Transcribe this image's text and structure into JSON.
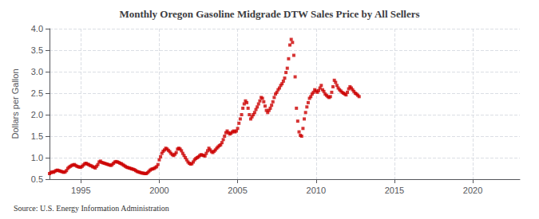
{
  "chart_data": {
    "type": "scatter",
    "title": "Monthly Oregon Gasoline Midgrade DTW Sales Price by All Sellers",
    "ylabel": "Dollars per Gallon",
    "source": "Source: U.S. Energy Information Administration",
    "color": "#cc0000",
    "marker": "square",
    "grid": true,
    "xlim": [
      1993.0,
      2023.0
    ],
    "ylim": [
      0.5,
      4.0
    ],
    "xticks": [
      1995,
      2000,
      2005,
      2010,
      2015,
      2020
    ],
    "yticks": [
      0.5,
      {
        "value": 1.0,
        "label": "1.0"
      },
      1.5,
      {
        "value": 2.0,
        "label": "2.0"
      },
      2.5,
      {
        "value": 3.0,
        "label": "3.0"
      },
      3.5,
      {
        "value": 4.0,
        "label": "4.0"
      }
    ],
    "x": [
      1993.0,
      1993.083,
      1993.167,
      1993.25,
      1993.333,
      1993.417,
      1993.5,
      1993.583,
      1993.667,
      1993.75,
      1993.833,
      1993.917,
      1994.0,
      1994.083,
      1994.167,
      1994.25,
      1994.333,
      1994.417,
      1994.5,
      1994.583,
      1994.667,
      1994.75,
      1994.833,
      1994.917,
      1995.0,
      1995.083,
      1995.167,
      1995.25,
      1995.333,
      1995.417,
      1995.5,
      1995.583,
      1995.667,
      1995.75,
      1995.833,
      1995.917,
      1996.0,
      1996.083,
      1996.167,
      1996.25,
      1996.333,
      1996.417,
      1996.5,
      1996.583,
      1996.667,
      1996.75,
      1996.833,
      1996.917,
      1997.0,
      1997.083,
      1997.167,
      1997.25,
      1997.333,
      1997.417,
      1997.5,
      1997.583,
      1997.667,
      1997.75,
      1997.833,
      1997.917,
      1998.0,
      1998.083,
      1998.167,
      1998.25,
      1998.333,
      1998.417,
      1998.5,
      1998.583,
      1998.667,
      1998.75,
      1998.833,
      1998.917,
      1999.0,
      1999.083,
      1999.167,
      1999.25,
      1999.333,
      1999.417,
      1999.5,
      1999.583,
      1999.667,
      1999.75,
      1999.833,
      1999.917,
      2000.0,
      2000.083,
      2000.167,
      2000.25,
      2000.333,
      2000.417,
      2000.5,
      2000.583,
      2000.667,
      2000.75,
      2000.833,
      2000.917,
      2001.0,
      2001.083,
      2001.167,
      2001.25,
      2001.333,
      2001.417,
      2001.5,
      2001.583,
      2001.667,
      2001.75,
      2001.833,
      2001.917,
      2002.0,
      2002.083,
      2002.167,
      2002.25,
      2002.333,
      2002.417,
      2002.5,
      2002.583,
      2002.667,
      2002.75,
      2002.833,
      2002.917,
      2003.0,
      2003.083,
      2003.167,
      2003.25,
      2003.333,
      2003.417,
      2003.5,
      2003.583,
      2003.667,
      2003.75,
      2003.833,
      2003.917,
      2004.0,
      2004.083,
      2004.167,
      2004.25,
      2004.333,
      2004.417,
      2004.5,
      2004.583,
      2004.667,
      2004.75,
      2004.833,
      2004.917,
      2005.0,
      2005.083,
      2005.167,
      2005.25,
      2005.333,
      2005.417,
      2005.5,
      2005.583,
      2005.667,
      2005.75,
      2005.833,
      2005.917,
      2006.0,
      2006.083,
      2006.167,
      2006.25,
      2006.333,
      2006.417,
      2006.5,
      2006.583,
      2006.667,
      2006.75,
      2006.833,
      2006.917,
      2007.0,
      2007.083,
      2007.167,
      2007.25,
      2007.333,
      2007.417,
      2007.5,
      2007.583,
      2007.667,
      2007.75,
      2007.833,
      2007.917,
      2008.0,
      2008.083,
      2008.167,
      2008.25,
      2008.333,
      2008.417,
      2008.5,
      2008.583,
      2008.667,
      2008.75,
      2008.833,
      2008.917,
      2009.0,
      2009.083,
      2009.167,
      2009.25,
      2009.333,
      2009.417,
      2009.5,
      2009.583,
      2009.667,
      2009.75,
      2009.833,
      2009.917,
      2010.0,
      2010.083,
      2010.167,
      2010.25,
      2010.333,
      2010.417,
      2010.5,
      2010.583,
      2010.667,
      2010.75,
      2010.833,
      2010.917,
      2011.0,
      2011.083,
      2011.167,
      2011.25,
      2011.333,
      2011.417,
      2011.5,
      2011.583,
      2011.667,
      2011.75,
      2011.833,
      2011.917,
      2012.0,
      2012.083,
      2012.167,
      2012.25,
      2012.333,
      2012.417,
      2012.5,
      2012.583,
      2012.667,
      2012.75
    ],
    "values": [
      0.63,
      0.65,
      0.67,
      0.66,
      0.68,
      0.7,
      0.71,
      0.7,
      0.69,
      0.68,
      0.67,
      0.66,
      0.67,
      0.7,
      0.75,
      0.78,
      0.8,
      0.82,
      0.83,
      0.84,
      0.82,
      0.8,
      0.79,
      0.78,
      0.78,
      0.8,
      0.83,
      0.86,
      0.87,
      0.85,
      0.84,
      0.82,
      0.81,
      0.79,
      0.78,
      0.76,
      0.8,
      0.84,
      0.9,
      0.92,
      0.89,
      0.88,
      0.87,
      0.86,
      0.85,
      0.84,
      0.83,
      0.82,
      0.84,
      0.87,
      0.9,
      0.91,
      0.9,
      0.89,
      0.87,
      0.86,
      0.84,
      0.82,
      0.8,
      0.78,
      0.77,
      0.76,
      0.75,
      0.74,
      0.73,
      0.72,
      0.7,
      0.68,
      0.67,
      0.66,
      0.65,
      0.64,
      0.64,
      0.63,
      0.63,
      0.65,
      0.68,
      0.71,
      0.73,
      0.74,
      0.75,
      0.77,
      0.79,
      0.84,
      0.95,
      1.02,
      1.1,
      1.15,
      1.18,
      1.22,
      1.2,
      1.17,
      1.14,
      1.1,
      1.07,
      1.05,
      1.08,
      1.12,
      1.2,
      1.22,
      1.2,
      1.16,
      1.1,
      1.05,
      1.0,
      0.95,
      0.9,
      0.87,
      0.85,
      0.86,
      0.9,
      0.95,
      0.98,
      1.0,
      1.02,
      1.05,
      1.07,
      1.06,
      1.05,
      1.04,
      1.1,
      1.16,
      1.22,
      1.18,
      1.14,
      1.12,
      1.15,
      1.18,
      1.22,
      1.25,
      1.28,
      1.3,
      1.35,
      1.42,
      1.5,
      1.58,
      1.62,
      1.58,
      1.55,
      1.57,
      1.6,
      1.62,
      1.6,
      1.62,
      1.68,
      1.8,
      1.9,
      2.0,
      2.15,
      2.25,
      2.32,
      2.28,
      2.15,
      2.0,
      1.9,
      1.95,
      2.0,
      2.05,
      2.12,
      2.18,
      2.25,
      2.32,
      2.4,
      2.38,
      2.3,
      2.2,
      2.1,
      2.05,
      2.1,
      2.15,
      2.22,
      2.3,
      2.4,
      2.48,
      2.52,
      2.58,
      2.62,
      2.68,
      2.72,
      2.78,
      2.85,
      2.98,
      3.08,
      3.3,
      3.62,
      3.75,
      3.68,
      3.38,
      2.88,
      2.15,
      1.85,
      1.6,
      1.52,
      1.5,
      1.68,
      1.9,
      2.05,
      2.18,
      2.28,
      2.38,
      2.42,
      2.48,
      2.52,
      2.58,
      2.55,
      2.52,
      2.56,
      2.62,
      2.68,
      2.58,
      2.54,
      2.48,
      2.45,
      2.42,
      2.4,
      2.42,
      2.52,
      2.65,
      2.8,
      2.75,
      2.68,
      2.62,
      2.58,
      2.55,
      2.52,
      2.5,
      2.48,
      2.46,
      2.52,
      2.6,
      2.65,
      2.62,
      2.58,
      2.54,
      2.5,
      2.48,
      2.45,
      2.42
    ]
  }
}
